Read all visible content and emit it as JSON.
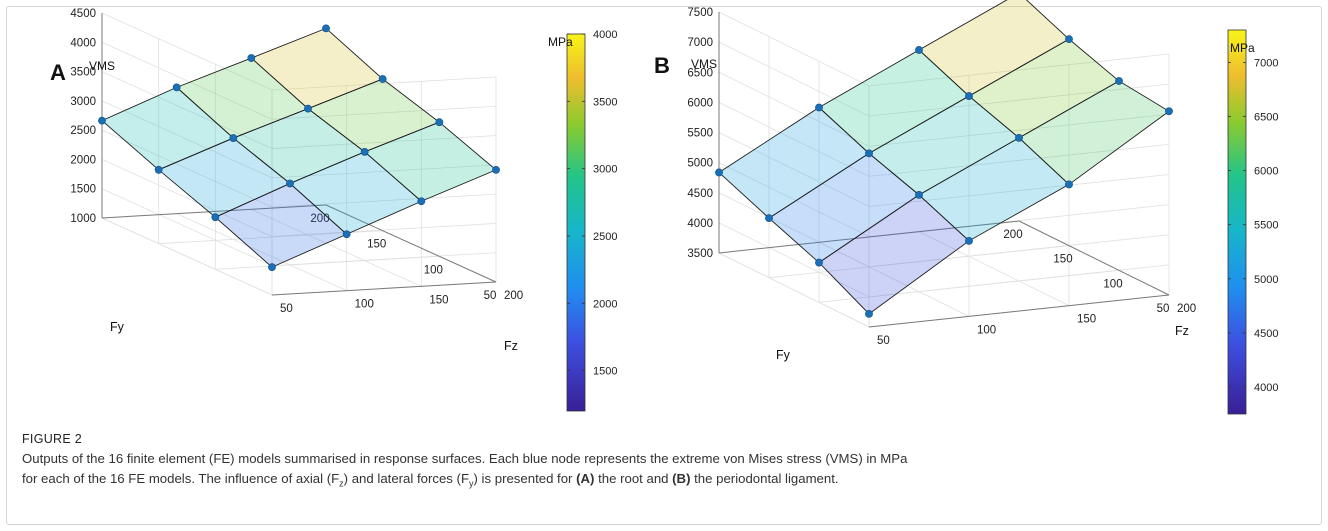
{
  "chart_data": [
    {
      "type": "surface3d",
      "panel_letter": "A",
      "zlabel": "VMS",
      "xlabel": "Fy",
      "ylabel": "Fz",
      "x_ticks": [
        "200",
        "150",
        "100",
        "50"
      ],
      "y_ticks": [
        "50",
        "100",
        "150",
        "200"
      ],
      "z_ticks": [
        "1000",
        "1500",
        "2000",
        "2500",
        "3000",
        "3500",
        "4000",
        "4500"
      ],
      "fy_values": [
        200,
        150,
        100,
        50
      ],
      "fz_values": [
        200,
        150,
        100,
        50
      ],
      "vms_grid": [
        [
          4016,
          3590,
          3290,
          2914
        ],
        [
          3583,
          3157,
          2858,
          2453
        ],
        [
          3156,
          2729,
          2392,
          1963
        ],
        [
          2663,
          2261,
          1890,
          1476
        ]
      ],
      "colorbar": {
        "unit": "MPa",
        "min": 1200,
        "max": 4000,
        "ticks": [
          "1500",
          "2000",
          "2500",
          "3000",
          "3500",
          "4000"
        ]
      },
      "node_color": "#1a6fb5",
      "grid": true
    },
    {
      "type": "surface3d",
      "panel_letter": "B",
      "zlabel": "VMS",
      "xlabel": "Fy",
      "ylabel": "Fz",
      "x_ticks": [
        "200",
        "150",
        "100",
        "50"
      ],
      "y_ticks": [
        "50",
        "100",
        "150",
        "200"
      ],
      "z_ticks": [
        "3500",
        "4000",
        "4500",
        "5000",
        "5500",
        "6000",
        "6500",
        "7000",
        "7500"
      ],
      "fy_values": [
        200,
        150,
        100,
        50
      ],
      "fz_values": [
        200,
        150,
        100,
        50
      ],
      "vms_grid": [
        [
          7284,
          6928,
          6642,
          6550
        ],
        [
          6516,
          6160,
          5876,
          5512
        ],
        [
          5738,
          5386,
          5106,
          4753
        ],
        [
          4837,
          4488,
          4160,
          3718
        ]
      ],
      "colorbar": {
        "unit": "MPa",
        "min": 3750,
        "max": 7300,
        "ticks": [
          "4000",
          "4500",
          "5000",
          "5500",
          "6000",
          "6500",
          "7000"
        ]
      },
      "node_color": "#1a6fb5",
      "grid": true
    }
  ],
  "caption": {
    "label": "FIGURE 2",
    "line1": "Outputs of the 16 finite element (FE) models summarised in response surfaces. Each blue node represents the extreme von Mises stress (VMS) in MPa",
    "line2_a": "for each of the 16 FE models. The influence of axial (F",
    "sub_z": "z",
    "line2_b": ") and lateral forces (F",
    "sub_y": "y",
    "line2_c": ") is presented for ",
    "ref_a": "(A)",
    "line2_d": " the root and ",
    "ref_b": "(B)",
    "line2_e": " the periodontal ligament."
  }
}
